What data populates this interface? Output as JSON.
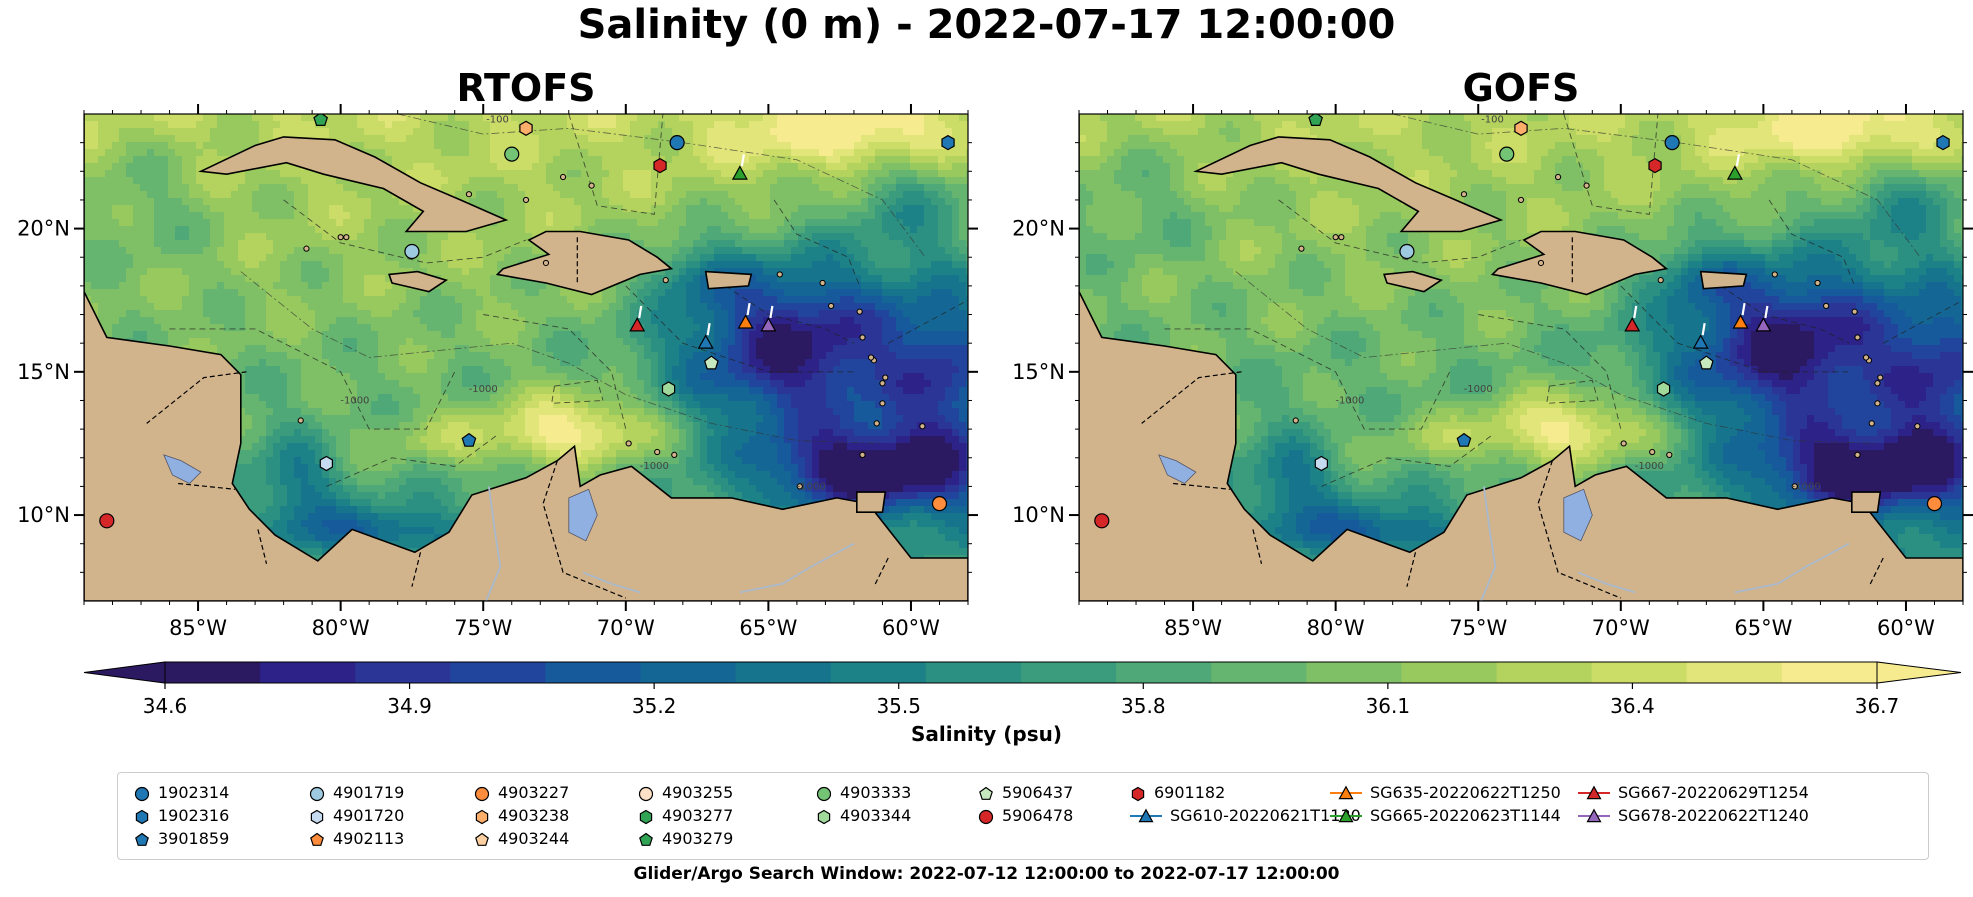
{
  "figure": {
    "title": "Salinity (0 m) - 2022-07-17 12:00:00",
    "footer": "Glider/Argo Search Window: 2022-07-12 12:00:00 to 2022-07-17 12:00:00"
  },
  "chart_data": [
    {
      "type": "heatmap",
      "title": "RTOFS",
      "xlim": [
        -89,
        -58
      ],
      "ylim": [
        7,
        24
      ],
      "xticks": [
        "85°W",
        "80°W",
        "75°W",
        "70°W",
        "65°W",
        "60°W"
      ],
      "yticks": [
        "10°N",
        "15°N",
        "20°N"
      ],
      "contour_labels": [
        "-100",
        "-1000",
        "-1000",
        "-1000",
        "-1000"
      ],
      "markers": [
        {
          "id": "1902314",
          "lon": -68.2,
          "lat": 23.0
        },
        {
          "id": "4901719",
          "lon": -77.5,
          "lat": 19.2
        },
        {
          "id": "4903227",
          "lon": -59.0,
          "lat": 10.4
        },
        {
          "id": "4903238",
          "lon": -73.5,
          "lat": 23.5
        },
        {
          "id": "4903333",
          "lon": -74.0,
          "lat": 22.6
        },
        {
          "id": "4903344",
          "lon": -68.5,
          "lat": 14.4
        },
        {
          "id": "5906437",
          "lon": -67.0,
          "lat": 15.3
        },
        {
          "id": "5906478",
          "lon": -88.2,
          "lat": 9.8
        },
        {
          "id": "4901720",
          "lon": -80.5,
          "lat": 11.8
        },
        {
          "id": "3901859",
          "lon": -75.5,
          "lat": 12.6
        },
        {
          "id": "1902316",
          "lon": -58.7,
          "lat": 23.0
        },
        {
          "id": "6901182",
          "lon": -68.8,
          "lat": 22.2
        },
        {
          "id": "4903279",
          "lon": -80.7,
          "lat": 23.8
        },
        {
          "id": "SG610-20220621T1130",
          "lon": -67.2,
          "lat": 16.0
        },
        {
          "id": "SG635-20220622T1250",
          "lon": -65.8,
          "lat": 16.7
        },
        {
          "id": "SG665-20220623T1144",
          "lon": -66.0,
          "lat": 21.9
        },
        {
          "id": "SG667-20220629T1254",
          "lon": -69.6,
          "lat": 16.6
        },
        {
          "id": "SG678-20220622T1240",
          "lon": -65.0,
          "lat": 16.6
        }
      ]
    },
    {
      "type": "heatmap",
      "title": "GOFS",
      "xlim": [
        -89,
        -58
      ],
      "ylim": [
        7,
        24
      ],
      "xticks": [
        "85°W",
        "80°W",
        "75°W",
        "70°W",
        "65°W",
        "60°W"
      ],
      "yticks": [
        "10°N",
        "15°N",
        "20°N"
      ],
      "contour_labels": [
        "-100",
        "-1000",
        "-1000",
        "-1000",
        "-1000"
      ],
      "markers": [
        {
          "id": "1902314",
          "lon": -68.2,
          "lat": 23.0
        },
        {
          "id": "4901719",
          "lon": -77.5,
          "lat": 19.2
        },
        {
          "id": "4903227",
          "lon": -59.0,
          "lat": 10.4
        },
        {
          "id": "4903238",
          "lon": -73.5,
          "lat": 23.5
        },
        {
          "id": "4903333",
          "lon": -74.0,
          "lat": 22.6
        },
        {
          "id": "4903344",
          "lon": -68.5,
          "lat": 14.4
        },
        {
          "id": "5906437",
          "lon": -67.0,
          "lat": 15.3
        },
        {
          "id": "5906478",
          "lon": -88.2,
          "lat": 9.8
        },
        {
          "id": "4901720",
          "lon": -80.5,
          "lat": 11.8
        },
        {
          "id": "3901859",
          "lon": -75.5,
          "lat": 12.6
        },
        {
          "id": "1902316",
          "lon": -58.7,
          "lat": 23.0
        },
        {
          "id": "6901182",
          "lon": -68.8,
          "lat": 22.2
        },
        {
          "id": "4903279",
          "lon": -80.7,
          "lat": 23.8
        },
        {
          "id": "SG610-20220621T1130",
          "lon": -67.2,
          "lat": 16.0
        },
        {
          "id": "SG635-20220622T1250",
          "lon": -65.8,
          "lat": 16.7
        },
        {
          "id": "SG665-20220623T1144",
          "lon": -66.0,
          "lat": 21.9
        },
        {
          "id": "SG667-20220629T1254",
          "lon": -69.6,
          "lat": 16.6
        },
        {
          "id": "SG678-20220622T1240",
          "lon": -65.0,
          "lat": 16.6
        }
      ]
    }
  ],
  "colorbar": {
    "label": "Salinity (psu)",
    "min": 34.6,
    "max": 36.7,
    "ticks": [
      "34.6",
      "34.9",
      "35.2",
      "35.5",
      "35.8",
      "36.1",
      "36.4",
      "36.7"
    ],
    "colors": [
      "#2b1a62",
      "#2c2288",
      "#2a3595",
      "#21459c",
      "#175a9b",
      "#146794",
      "#16758d",
      "#1d8287",
      "#2b8f82",
      "#3a9b7d",
      "#4ea877",
      "#65b46f",
      "#7fc066",
      "#98c95f",
      "#b3d35e",
      "#cbdc67",
      "#e2e57a",
      "#f6eb8e"
    ]
  },
  "style": {
    "land": "#d2b48c",
    "lakes": "#8fb0e0",
    "rivers": "#a9b9cc"
  },
  "legend": [
    {
      "label": "1902314",
      "marker": "circle",
      "color": "#1f77b4"
    },
    {
      "label": "1902316",
      "marker": "hexagon",
      "color": "#1f77b4"
    },
    {
      "label": "3901859",
      "marker": "pentagon",
      "color": "#1f77b4"
    },
    {
      "label": "4901719",
      "marker": "circle",
      "color": "#9ecae1"
    },
    {
      "label": "4901720",
      "marker": "hexagon",
      "color": "#c6dbef"
    },
    {
      "label": "4902113",
      "marker": "pentagon",
      "color": "#fd8d3c"
    },
    {
      "label": "4903227",
      "marker": "circle",
      "color": "#fd8d3c"
    },
    {
      "label": "4903238",
      "marker": "hexagon",
      "color": "#fdae6b"
    },
    {
      "label": "4903244",
      "marker": "pentagon",
      "color": "#fdd0a2"
    },
    {
      "label": "4903255",
      "marker": "circle",
      "color": "#fde0c5"
    },
    {
      "label": "4903277",
      "marker": "hexagon",
      "color": "#31a354"
    },
    {
      "label": "4903279",
      "marker": "pentagon",
      "color": "#31a354"
    },
    {
      "label": "4903333",
      "marker": "circle",
      "color": "#74c476"
    },
    {
      "label": "4903344",
      "marker": "hexagon",
      "color": "#a1d99b"
    },
    {
      "label": "5906437",
      "marker": "pentagon",
      "color": "#c7e9c0"
    },
    {
      "label": "5906478",
      "marker": "circle",
      "color": "#d62728"
    },
    {
      "label": "6901182",
      "marker": "hexagon",
      "color": "#d62728"
    },
    {
      "label": "SG610-20220621T1130",
      "marker": "triangle-line",
      "color": "#1f77b4"
    },
    {
      "label": "SG635-20220622T1250",
      "marker": "triangle-line",
      "color": "#ff7f0e"
    },
    {
      "label": "SG665-20220623T1144",
      "marker": "triangle-line",
      "color": "#2ca02c"
    },
    {
      "label": "SG667-20220629T1254",
      "marker": "triangle-line",
      "color": "#d62728"
    },
    {
      "label": "SG678-20220622T1240",
      "marker": "triangle-line",
      "color": "#9467bd"
    }
  ]
}
